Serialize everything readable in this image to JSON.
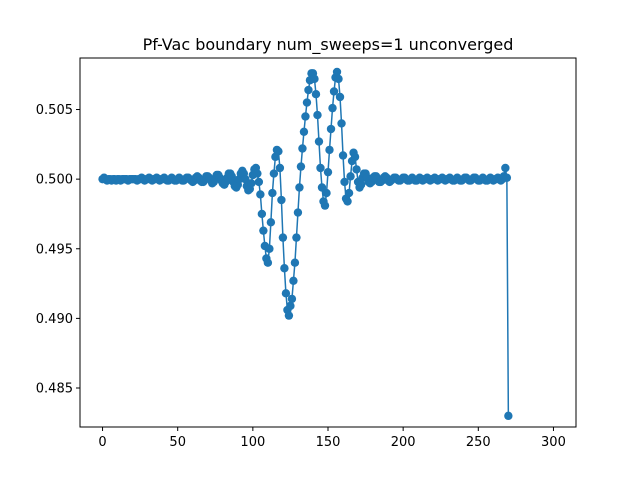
{
  "chart_data": {
    "type": "line",
    "title": "Pf-Vac boundary num_sweeps=1 unconverged",
    "xlabel": "",
    "ylabel": "",
    "xlim": [
      -15,
      315
    ],
    "ylim": [
      0.4822,
      0.5087
    ],
    "grid": false,
    "marker": "circle",
    "line_color": "#1f77b4",
    "x_ticks": [
      0,
      50,
      100,
      150,
      200,
      250,
      300
    ],
    "x_tick_labels": [
      "0",
      "50",
      "100",
      "150",
      "200",
      "250",
      "300"
    ],
    "y_ticks": [
      0.485,
      0.49,
      0.495,
      0.5,
      0.505
    ],
    "y_tick_labels": [
      "0.485",
      "0.490",
      "0.495",
      "0.500",
      "0.505"
    ],
    "series": [
      {
        "values": [
          0.5,
          0.5001,
          0.5,
          0.4999,
          0.5,
          0.5,
          0.4999,
          0.5,
          0.5,
          0.4999,
          0.5,
          0.5,
          0.4999,
          0.5,
          0.5,
          0.5,
          0.5,
          0.4999,
          0.5,
          0.5,
          0.5,
          0.5,
          0.5,
          0.4999,
          0.5,
          0.5,
          0.5001,
          0.5,
          0.4999,
          0.5,
          0.5,
          0.5001,
          0.5,
          0.4999,
          0.5,
          0.5,
          0.5001,
          0.5,
          0.4999,
          0.5,
          0.5,
          0.5001,
          0.5,
          0.4999,
          0.4999,
          0.5,
          0.5001,
          0.5,
          0.4999,
          0.4999,
          0.5,
          0.5001,
          0.5,
          0.4999,
          0.4999,
          0.5,
          0.5001,
          0.5001,
          0.5,
          0.4999,
          0.4998,
          0.4999,
          0.5001,
          0.5002,
          0.5001,
          0.4999,
          0.4998,
          0.4998,
          0.5,
          0.5002,
          0.5002,
          0.5001,
          0.4999,
          0.4997,
          0.4998,
          0.5,
          0.5003,
          0.5003,
          0.5001,
          0.4999,
          0.4997,
          0.4996,
          0.4998,
          0.5001,
          0.5004,
          0.5004,
          0.5002,
          0.4998,
          0.4995,
          0.4994,
          0.4996,
          0.5,
          0.5004,
          0.5006,
          0.5004,
          0.5,
          0.4995,
          0.4992,
          0.4993,
          0.4997,
          0.5003,
          0.5007,
          0.5008,
          0.5004,
          0.4998,
          0.4989,
          0.4975,
          0.4963,
          0.4952,
          0.4943,
          0.494,
          0.495,
          0.4969,
          0.499,
          0.5004,
          0.5016,
          0.5021,
          0.502,
          0.5008,
          0.4985,
          0.4958,
          0.4936,
          0.4918,
          0.4906,
          0.4902,
          0.4909,
          0.4914,
          0.4927,
          0.494,
          0.4958,
          0.4976,
          0.4994,
          0.5009,
          0.5022,
          0.5034,
          0.5045,
          0.5055,
          0.5064,
          0.5071,
          0.5076,
          0.5076,
          0.5072,
          0.5061,
          0.5046,
          0.5027,
          0.5008,
          0.4994,
          0.4984,
          0.4981,
          0.499,
          0.5005,
          0.5021,
          0.5036,
          0.5051,
          0.5063,
          0.5073,
          0.5077,
          0.5072,
          0.5059,
          0.504,
          0.5017,
          0.4998,
          0.4986,
          0.4984,
          0.499,
          0.5002,
          0.5013,
          0.5019,
          0.5016,
          0.5007,
          0.4998,
          0.4994,
          0.4996,
          0.5001,
          0.5004,
          0.5004,
          0.5001,
          0.4998,
          0.4997,
          0.4998,
          0.5001,
          0.5002,
          0.5002,
          0.5,
          0.4998,
          0.4998,
          0.4999,
          0.5001,
          0.5002,
          0.5001,
          0.4999,
          0.4998,
          0.4999,
          0.5,
          0.5001,
          0.5001,
          0.5,
          0.4999,
          0.4999,
          0.5,
          0.5001,
          0.5001,
          0.5,
          0.4999,
          0.4999,
          0.5,
          0.5001,
          0.5,
          0.4999,
          0.4999,
          0.5,
          0.5001,
          0.5,
          0.4999,
          0.5,
          0.5,
          0.5001,
          0.5,
          0.4999,
          0.5,
          0.5,
          0.5001,
          0.5,
          0.4999,
          0.5,
          0.5,
          0.5001,
          0.5,
          0.4999,
          0.5,
          0.5,
          0.5001,
          0.5,
          0.4999,
          0.4999,
          0.5,
          0.5001,
          0.5,
          0.4999,
          0.4999,
          0.5,
          0.5001,
          0.5001,
          0.5,
          0.4999,
          0.4999,
          0.5,
          0.5001,
          0.5001,
          0.5,
          0.4999,
          0.4999,
          0.5,
          0.5001,
          0.5,
          0.4999,
          0.4999,
          0.5,
          0.5001,
          0.5,
          0.4999,
          0.5,
          0.5,
          0.5001,
          0.5,
          0.4999,
          0.5,
          0.5002,
          0.5008,
          0.5001,
          0.483
        ]
      }
    ]
  }
}
